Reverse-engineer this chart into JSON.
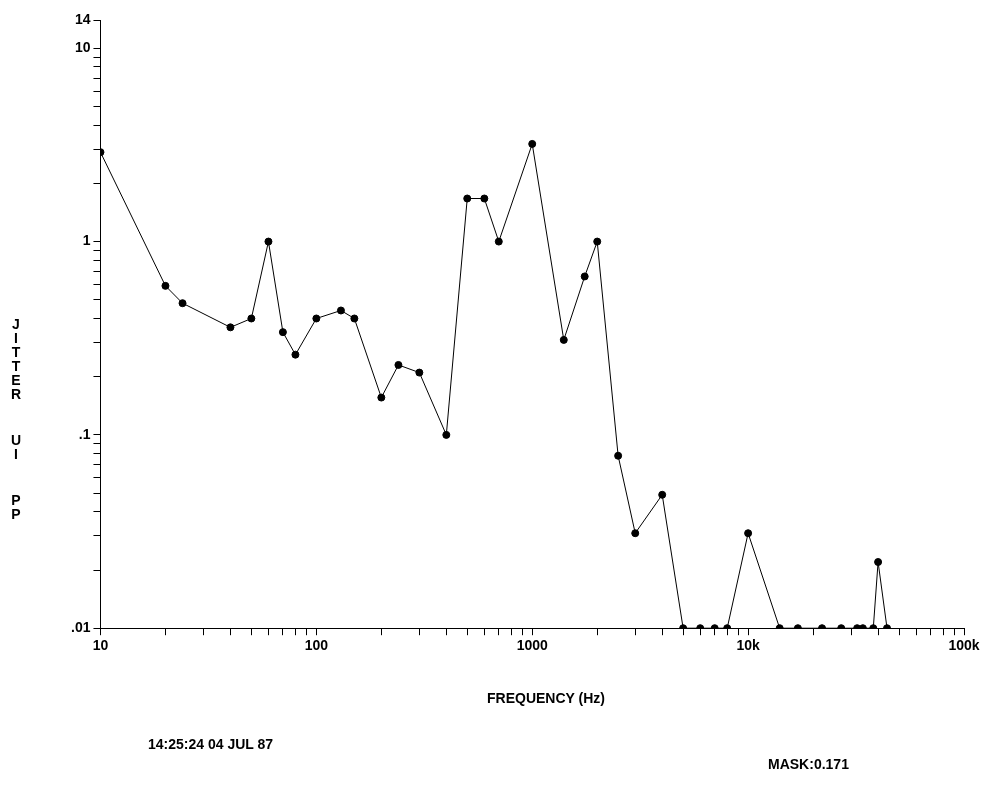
{
  "chart_data": {
    "type": "line",
    "xlabel": "FREQUENCY (Hz)",
    "ylabel": "JITTER UI PP",
    "annotations": [
      "14:25:24 04 JUL 87",
      "MASK:0.171"
    ],
    "log": "xy",
    "grid": false,
    "legend": false,
    "marker": "circle",
    "line_style": "solid",
    "series": [
      {
        "color": "#000000",
        "x": [
          10,
          20,
          24,
          40,
          50,
          60,
          70,
          80,
          100,
          130,
          150,
          200,
          240,
          300,
          400,
          500,
          600,
          700,
          1000,
          1400,
          1750,
          2000,
          2500,
          3000,
          4000,
          5000,
          6000,
          7000,
          8000,
          10000,
          14000,
          17000,
          22000,
          27000,
          32000,
          34000,
          38000,
          40000,
          44000
        ],
        "values": [
          2.9,
          0.59,
          0.48,
          0.36,
          0.4,
          1,
          0.34,
          0.26,
          0.4,
          0.44,
          0.4,
          0.156,
          0.23,
          0.21,
          0.1,
          1.67,
          1.67,
          1,
          3.2,
          0.31,
          0.66,
          1,
          0.078,
          0.031,
          0.049,
          0.01,
          0.01,
          0.01,
          0.01,
          0.031,
          0.01,
          0.01,
          0.01,
          0.01,
          0.01,
          0.01,
          0.01,
          0.022,
          0.01
        ]
      }
    ],
    "xlim": [
      10,
      100000
    ],
    "xticks": [
      10,
      {
        "value": 20,
        "label": null
      },
      {
        "value": 30,
        "label": null
      },
      {
        "value": 40,
        "label": null
      },
      {
        "value": 50,
        "label": null
      },
      {
        "value": 60,
        "label": null
      },
      {
        "value": 70,
        "label": null
      },
      {
        "value": 80,
        "label": null
      },
      {
        "value": 90,
        "label": null
      },
      100,
      {
        "value": 200,
        "label": null
      },
      {
        "value": 300,
        "label": null
      },
      {
        "value": 400,
        "label": null
      },
      {
        "value": 500,
        "label": null
      },
      {
        "value": 600,
        "label": null
      },
      {
        "value": 700,
        "label": null
      },
      {
        "value": 800,
        "label": null
      },
      {
        "value": 900,
        "label": null
      },
      1000,
      {
        "value": 2000,
        "label": null
      },
      {
        "value": 3000,
        "label": null
      },
      {
        "value": 4000,
        "label": null
      },
      {
        "value": 5000,
        "label": null
      },
      {
        "value": 6000,
        "label": null
      },
      {
        "value": 7000,
        "label": null
      },
      {
        "value": 8000,
        "label": null
      },
      {
        "value": 9000,
        "label": null
      },
      {
        "value": 10000,
        "label": "10k"
      },
      {
        "value": 20000,
        "label": null
      },
      {
        "value": 30000,
        "label": null
      },
      {
        "value": 40000,
        "label": null
      },
      {
        "value": 50000,
        "label": null
      },
      {
        "value": 60000,
        "label": null
      },
      {
        "value": 70000,
        "label": null
      },
      {
        "value": 80000,
        "label": null
      },
      {
        "value": 90000,
        "label": null
      },
      {
        "value": 100000,
        "label": "100k"
      }
    ],
    "ylim": [
      0.01,
      14
    ],
    "yticks": [
      {
        "value": 0.01,
        "label": ".01"
      },
      {
        "value": 0.02,
        "label": null
      },
      {
        "value": 0.03,
        "label": null
      },
      {
        "value": 0.04,
        "label": null
      },
      {
        "value": 0.05,
        "label": null
      },
      {
        "value": 0.06,
        "label": null
      },
      {
        "value": 0.07,
        "label": null
      },
      {
        "value": 0.08,
        "label": null
      },
      {
        "value": 0.09,
        "label": null
      },
      {
        "value": 0.1,
        "label": ".1"
      },
      {
        "value": 0.2,
        "label": null
      },
      {
        "value": 0.3,
        "label": null
      },
      {
        "value": 0.4,
        "label": null
      },
      {
        "value": 0.5,
        "label": null
      },
      {
        "value": 0.6,
        "label": null
      },
      {
        "value": 0.7,
        "label": null
      },
      {
        "value": 0.8,
        "label": null
      },
      {
        "value": 0.9,
        "label": null
      },
      1,
      {
        "value": 2,
        "label": null
      },
      {
        "value": 3,
        "label": null
      },
      {
        "value": 4,
        "label": null
      },
      {
        "value": 5,
        "label": null
      },
      {
        "value": 6,
        "label": null
      },
      {
        "value": 7,
        "label": null
      },
      {
        "value": 8,
        "label": null
      },
      {
        "value": 9,
        "label": null
      },
      10,
      14
    ]
  }
}
